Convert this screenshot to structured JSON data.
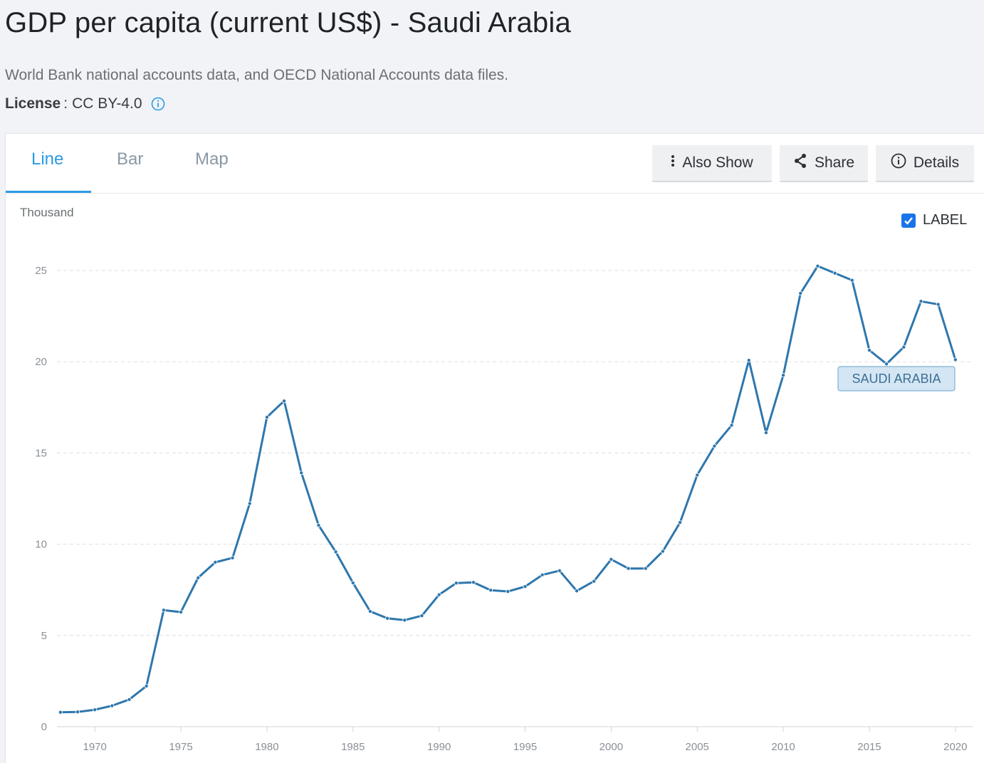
{
  "header": {
    "title": "GDP per capita (current US$) - Saudi Arabia",
    "source": "World Bank national accounts data, and OECD National Accounts data files.",
    "license_label": "License",
    "license_sep": ":",
    "license_value": "CC BY-4.0"
  },
  "tabs": [
    {
      "label": "Line",
      "active": true
    },
    {
      "label": "Bar",
      "active": false
    },
    {
      "label": "Map",
      "active": false
    }
  ],
  "toolbar": {
    "also_show_label": "Also Show",
    "share_label": "Share",
    "details_label": "Details"
  },
  "label_toggle": {
    "label": "LABEL",
    "checked": true
  },
  "colors": {
    "line": "#2e77ad",
    "accent": "#2c9ae3",
    "badge_bg": "#d4e6f3",
    "badge_border": "#7fb0d3"
  },
  "chart_data": {
    "type": "line",
    "ylabel": "Thousand",
    "xlim": [
      1967.8,
      2021
    ],
    "ylim": [
      0,
      25
    ],
    "yticks": [
      0,
      5,
      10,
      15,
      20,
      25
    ],
    "xticks": [
      1970,
      1975,
      1980,
      1985,
      1990,
      1995,
      2000,
      2005,
      2010,
      2015,
      2020
    ],
    "grid": true,
    "series": [
      {
        "name": "SAUDI ARABIA",
        "x": [
          1968,
          1969,
          1970,
          1971,
          1972,
          1973,
          1974,
          1975,
          1976,
          1977,
          1978,
          1979,
          1980,
          1981,
          1982,
          1983,
          1984,
          1985,
          1986,
          1987,
          1988,
          1989,
          1990,
          1991,
          1992,
          1993,
          1994,
          1995,
          1996,
          1997,
          1998,
          1999,
          2000,
          2001,
          2002,
          2003,
          2004,
          2005,
          2006,
          2007,
          2008,
          2009,
          2010,
          2011,
          2012,
          2013,
          2014,
          2015,
          2016,
          2017,
          2018,
          2019,
          2020
        ],
        "y": [
          0.79,
          0.81,
          0.93,
          1.15,
          1.49,
          2.23,
          6.39,
          6.28,
          8.16,
          9.01,
          9.25,
          12.23,
          16.96,
          17.85,
          13.91,
          11.04,
          9.58,
          7.88,
          6.32,
          5.94,
          5.84,
          6.08,
          7.23,
          7.87,
          7.91,
          7.48,
          7.41,
          7.68,
          8.32,
          8.55,
          7.44,
          7.97,
          9.17,
          8.67,
          8.67,
          9.61,
          11.19,
          13.79,
          15.38,
          16.52,
          20.08,
          16.11,
          19.26,
          23.75,
          25.24,
          24.85,
          24.46,
          20.63,
          19.88,
          20.8,
          23.31,
          23.14,
          20.11
        ]
      }
    ],
    "series_label": "SAUDI ARABIA"
  }
}
